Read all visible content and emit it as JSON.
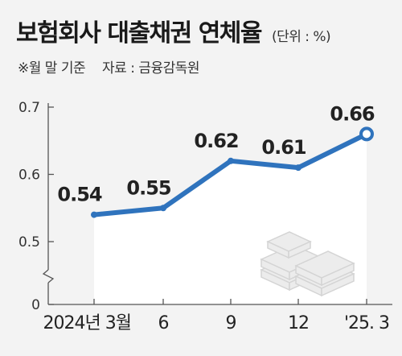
{
  "title": "보험회사 대출채권 연체율",
  "unit": "(단위 : %)",
  "note": "※월 말 기준",
  "source": "자료 : 금융감독원",
  "colors": {
    "line": "#2f73bd",
    "area": "#ffffff",
    "axis": "#555555",
    "background": "#f3f3f3"
  },
  "icon": "stacked-money-bundles-icon",
  "chart_data": {
    "type": "line",
    "categories": [
      "2024년 3월",
      "6",
      "9",
      "12",
      "'25. 3"
    ],
    "values": [
      0.54,
      0.55,
      0.62,
      0.61,
      0.66
    ],
    "labels": [
      "0.54",
      "0.55",
      "0.62",
      "0.61",
      "0.66"
    ],
    "yticks": [
      "0.7",
      "0.6",
      "0.5",
      "0"
    ],
    "ylim": [
      0.5,
      0.7
    ],
    "axis_break": true,
    "grid": false,
    "highlight_last_point": true
  }
}
